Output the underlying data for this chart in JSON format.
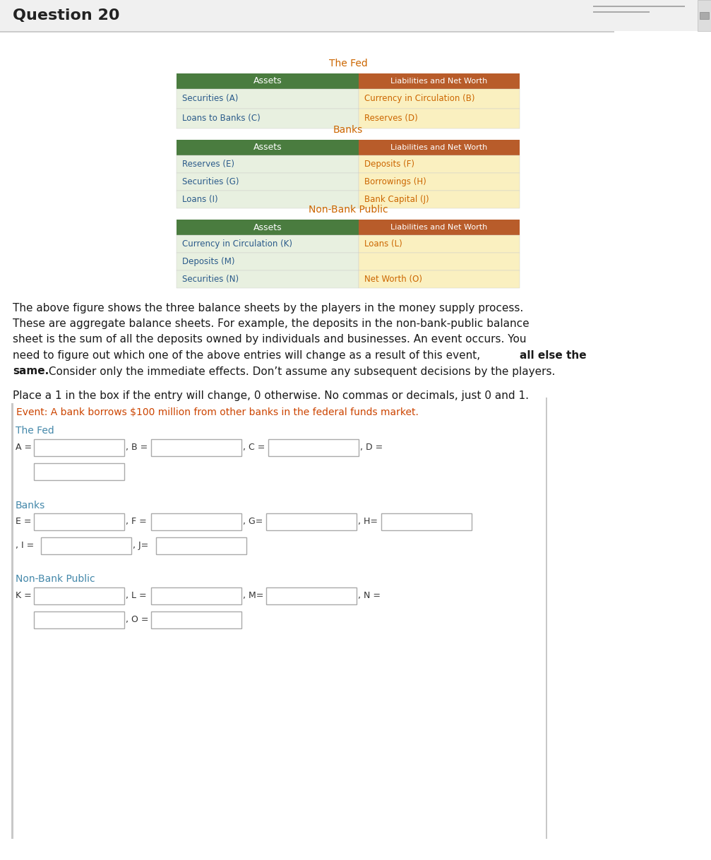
{
  "title": "Question 20",
  "background_color": "#ffffff",
  "header_bg": "#f0f0f0",
  "title_color": "#222222",
  "title_fontsize": 16,
  "fed_label": "The Fed",
  "banks_label": "Banks",
  "nbp_label": "Non-Bank Public",
  "section_label_color": "#cc6600",
  "header_green": "#4a7c3f",
  "header_orange": "#b85c2a",
  "assets_header": "Assets",
  "liabilities_header": "Liabilities and Net Worth",
  "header_text_color": "#ffffff",
  "cell_left_bg": "#e8f0e0",
  "cell_right_bg": "#faf0c0",
  "cell_text_color_left": "#2a5a8a",
  "cell_text_color_right": "#cc6600",
  "fed_assets": [
    "Securities (A)",
    "Loans to Banks (C)"
  ],
  "fed_liabilities": [
    "Currency in Circulation (B)",
    "Reserves (D)"
  ],
  "banks_assets": [
    "Reserves (E)",
    "Securities (G)",
    "Loans (I)"
  ],
  "banks_liabilities": [
    "Deposits (F)",
    "Borrowings (H)",
    "Bank Capital (J)"
  ],
  "nbp_assets": [
    "Currency in Circulation (K)",
    "Deposits (M)",
    "Securities (N)"
  ],
  "nbp_liabilities": [
    "Loans (L)",
    "",
    "Net Worth (O)"
  ],
  "instruction_text": "Place a 1 in the box if the entry will change, 0 otherwise. No commas or decimals, just 0 and 1.",
  "event_text": "Event: A bank borrows $100 million from other banks in the federal funds market.",
  "event_color": "#cc4400",
  "section_fed_label": "The Fed",
  "section_banks_label": "Banks",
  "section_nbp_label": "Non-Bank Public",
  "section_label_color2": "#4488aa",
  "para_lines": [
    "The above figure shows the three balance sheets by the players in the money supply process.",
    "These are aggregate balance sheets. For example, the deposits in the non-bank-public balance",
    "sheet is the sum of all the deposits owned by individuals and businesses. An event occurs. You",
    "need to figure out which one of the above entries will change as a result of this event, ",
    "same. Consider only the immediate effects. Don’t assume any subsequent decisions by the players."
  ],
  "bold_end_line4": "all else the",
  "bold_start_line5": "same."
}
